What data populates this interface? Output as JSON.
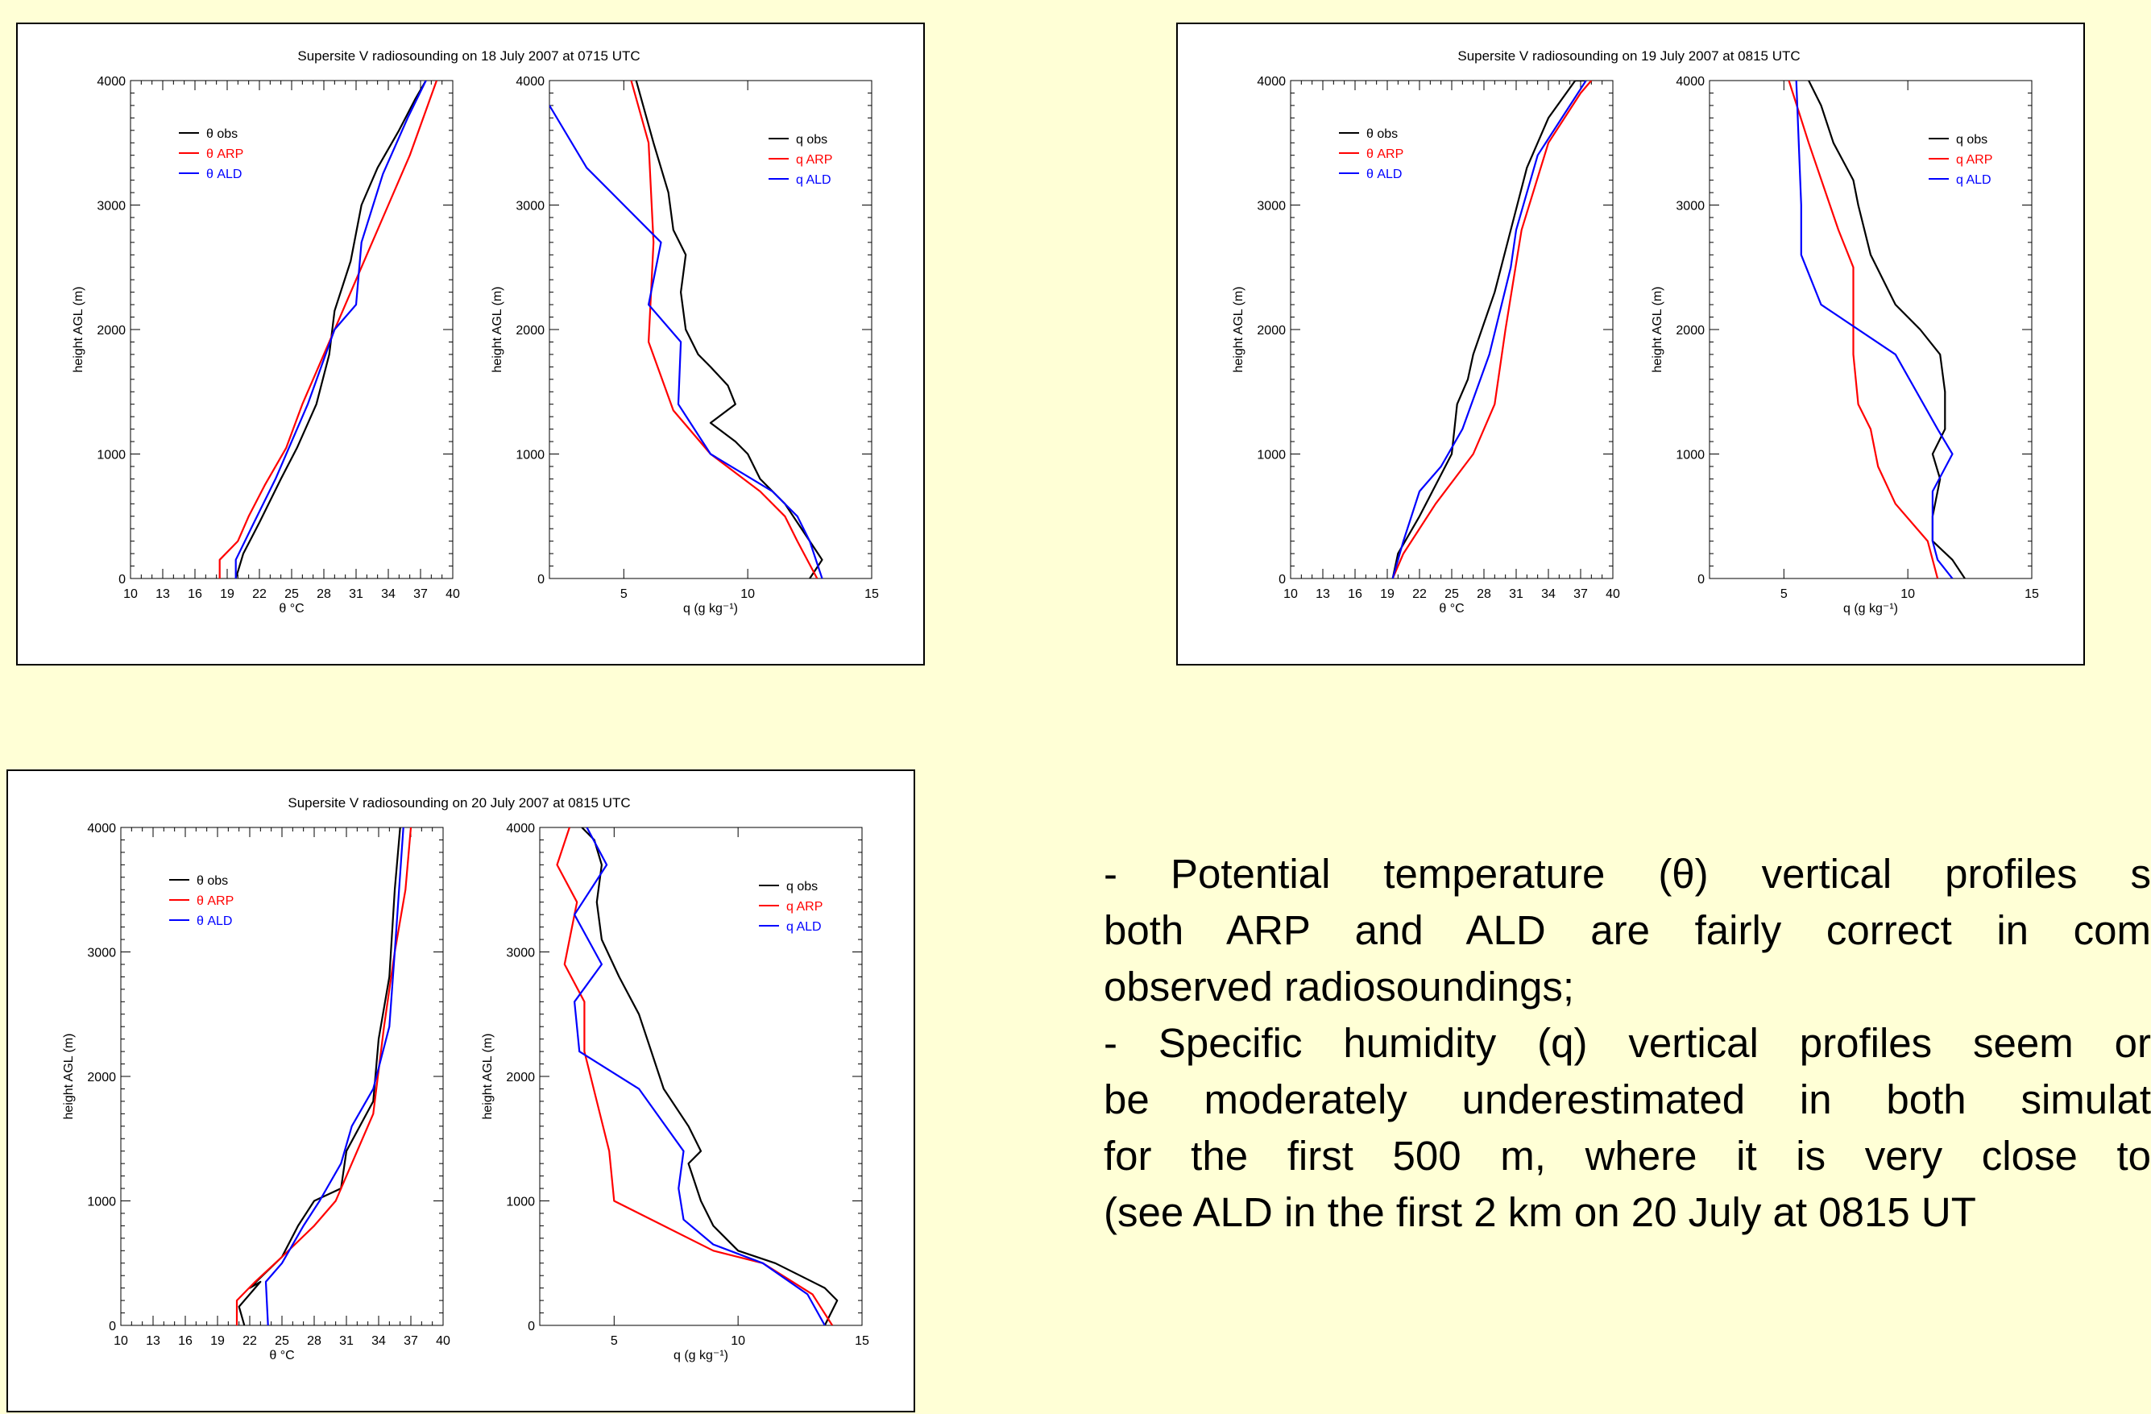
{
  "notes": {
    "lines": [
      "- Potential temperature (θ) vertical profiles s",
      "both ARP and ALD are fairly correct in com",
      "observed radiosoundings;",
      "- Specific humidity (q) vertical profiles seem or",
      "be moderately underestimated in both simulat",
      "for the first 500 m, where it is very close to",
      "(see ALD in the first 2 km on 20 July at 0815 UT"
    ]
  },
  "chart_data": [
    {
      "title": "Supersite V radiosounding on 18 July 2007 at 0715 UTC",
      "panels": [
        {
          "type": "line",
          "kind": "theta",
          "xlabel": "θ °C",
          "ylabel": "height AGL (m)",
          "xlim": [
            10,
            40
          ],
          "ylim": [
            0,
            4000
          ],
          "xticks": [
            10,
            13,
            16,
            19,
            22,
            25,
            28,
            31,
            34,
            37,
            40
          ],
          "yticks": [
            0,
            1000,
            2000,
            3000,
            4000
          ],
          "legend": [
            "θ obs",
            "θ ARP",
            "θ ALD"
          ],
          "series": [
            {
              "name": "θ obs",
              "color": "#000000",
              "x": [
                19.8,
                20.5,
                22,
                24,
                25.5,
                27.3,
                28.5,
                29,
                30.5,
                31.5,
                33,
                35,
                36.5,
                37.5
              ],
              "y": [
                0,
                200,
                450,
                800,
                1050,
                1400,
                1800,
                2150,
                2550,
                3000,
                3300,
                3600,
                3850,
                4000
              ]
            },
            {
              "name": "θ ARP",
              "color": "#ff0000",
              "x": [
                18.3,
                18.3,
                20,
                21,
                22.5,
                24.5,
                26,
                28,
                30,
                32,
                34,
                36,
                38.5
              ],
              "y": [
                0,
                150,
                300,
                500,
                750,
                1050,
                1400,
                1800,
                2200,
                2600,
                3000,
                3400,
                4000
              ]
            },
            {
              "name": "θ ALD",
              "color": "#0000ff",
              "x": [
                19.8,
                19.8,
                21.5,
                23.5,
                26.5,
                29,
                31,
                31.5,
                33.5,
                35.8,
                37.5
              ],
              "y": [
                0,
                150,
                450,
                800,
                1400,
                2000,
                2200,
                2700,
                3250,
                3700,
                4000
              ]
            }
          ]
        },
        {
          "type": "line",
          "kind": "q",
          "xlabel": "q (g kg⁻¹)",
          "ylabel": "height AGL (m)",
          "xlim": [
            2,
            15
          ],
          "ylim": [
            0,
            4000
          ],
          "xticks": [
            5,
            10,
            15
          ],
          "yticks": [
            0,
            1000,
            2000,
            3000,
            4000
          ],
          "legend": [
            "q obs",
            "q ARP",
            "q ALD"
          ],
          "series": [
            {
              "name": "q obs",
              "color": "#000000",
              "x": [
                12.5,
                13,
                12.5,
                11.5,
                10.5,
                10,
                9.5,
                8.5,
                9.5,
                9.2,
                8.5,
                8,
                7.5,
                7.3,
                7.5,
                7,
                6.8,
                6.2,
                5.5
              ],
              "y": [
                0,
                150,
                300,
                600,
                800,
                1000,
                1100,
                1250,
                1400,
                1550,
                1700,
                1800,
                2000,
                2300,
                2600,
                2800,
                3100,
                3500,
                4000
              ]
            },
            {
              "name": "q ARP",
              "color": "#ff0000",
              "x": [
                12.8,
                12,
                11.5,
                10.5,
                8.5,
                7,
                6,
                6.2,
                6,
                5.3
              ],
              "y": [
                0,
                300,
                500,
                700,
                1000,
                1350,
                1900,
                2700,
                3500,
                4000
              ]
            },
            {
              "name": "q ALD",
              "color": "#0000ff",
              "x": [
                13,
                12.5,
                12,
                11,
                8.5,
                7.2,
                7.3,
                6,
                6.5,
                3.5,
                2
              ],
              "y": [
                0,
                300,
                500,
                700,
                1000,
                1400,
                1900,
                2200,
                2700,
                3300,
                3800
              ]
            }
          ]
        }
      ]
    },
    {
      "title": "Supersite V radiosounding on 19 July 2007 at 0815 UTC",
      "panels": [
        {
          "type": "line",
          "kind": "theta",
          "xlabel": "θ °C",
          "ylabel": "height AGL (m)",
          "xlim": [
            10,
            40
          ],
          "ylim": [
            0,
            4000
          ],
          "xticks": [
            10,
            13,
            16,
            19,
            22,
            25,
            28,
            31,
            34,
            37,
            40
          ],
          "yticks": [
            0,
            1000,
            2000,
            3000,
            4000
          ],
          "legend": [
            "θ obs",
            "θ ARP",
            "θ ALD"
          ],
          "series": [
            {
              "name": "θ obs",
              "color": "#000000",
              "x": [
                19.5,
                20,
                22,
                25,
                25.5,
                26.5,
                27,
                29,
                30.5,
                32,
                34,
                36.5,
                37.5
              ],
              "y": [
                0,
                200,
                500,
                1000,
                1400,
                1600,
                1800,
                2300,
                2800,
                3300,
                3700,
                4000,
                4000
              ]
            },
            {
              "name": "θ ARP",
              "color": "#ff0000",
              "x": [
                19.5,
                20.5,
                23.5,
                27,
                29,
                30,
                31.5,
                34,
                37,
                38
              ],
              "y": [
                0,
                200,
                600,
                1000,
                1400,
                2000,
                2800,
                3500,
                3900,
                4000
              ]
            },
            {
              "name": "θ ALD",
              "color": "#0000ff",
              "x": [
                19.5,
                20.5,
                22,
                24,
                26,
                28.5,
                30.5,
                31,
                33,
                36,
                37.5
              ],
              "y": [
                0,
                300,
                700,
                900,
                1200,
                1800,
                2500,
                2800,
                3400,
                3800,
                4000
              ]
            }
          ]
        },
        {
          "type": "line",
          "kind": "q",
          "xlabel": "q (g kg⁻¹)",
          "ylabel": "height AGL (m)",
          "xlim": [
            2,
            15
          ],
          "ylim": [
            0,
            4000
          ],
          "xticks": [
            5,
            10,
            15
          ],
          "yticks": [
            0,
            1000,
            2000,
            3000,
            4000
          ],
          "legend": [
            "q obs",
            "q ARP",
            "q ALD"
          ],
          "series": [
            {
              "name": "q obs",
              "color": "#000000",
              "x": [
                12.3,
                11.8,
                11,
                11,
                11.3,
                11,
                11.5,
                11.5,
                11.3,
                10.5,
                9.5,
                8.5,
                8,
                7.8,
                7,
                6.5,
                6
              ],
              "y": [
                0,
                150,
                300,
                500,
                800,
                1000,
                1200,
                1500,
                1800,
                2000,
                2200,
                2600,
                3000,
                3200,
                3500,
                3800,
                4000
              ]
            },
            {
              "name": "q ARP",
              "color": "#ff0000",
              "x": [
                11.2,
                10.8,
                9.5,
                8.8,
                8.5,
                8,
                7.8,
                7.8,
                7.2,
                6,
                5.2
              ],
              "y": [
                0,
                300,
                600,
                900,
                1200,
                1400,
                1800,
                2500,
                2800,
                3500,
                4000
              ]
            },
            {
              "name": "q ALD",
              "color": "#0000ff",
              "x": [
                11.8,
                11.2,
                11,
                11,
                11.8,
                11.2,
                9.5,
                6.5,
                5.7,
                5.7,
                5.5
              ],
              "y": [
                0,
                150,
                300,
                700,
                1000,
                1200,
                1800,
                2200,
                2600,
                3000,
                4000
              ]
            }
          ]
        }
      ]
    },
    {
      "title": "Supersite V radiosounding on 20 July 2007 at 0815 UTC",
      "panels": [
        {
          "type": "line",
          "kind": "theta",
          "xlabel": "θ °C",
          "ylabel": "height AGL (m)",
          "xlim": [
            10,
            40
          ],
          "ylim": [
            0,
            4000
          ],
          "xticks": [
            10,
            13,
            16,
            19,
            22,
            25,
            28,
            31,
            34,
            37,
            40
          ],
          "yticks": [
            0,
            1000,
            2000,
            3000,
            4000
          ],
          "legend": [
            "θ obs",
            "θ ARP",
            "θ ALD"
          ],
          "series": [
            {
              "name": "θ obs",
              "color": "#000000",
              "x": [
                21.5,
                21,
                23,
                22,
                25,
                26.5,
                28,
                30.5,
                31,
                33.5,
                34,
                35,
                35.5,
                36
              ],
              "y": [
                0,
                150,
                350,
                300,
                550,
                800,
                1000,
                1100,
                1400,
                1800,
                2300,
                2800,
                3500,
                4000
              ]
            },
            {
              "name": "θ ARP",
              "color": "#ff0000",
              "x": [
                20.8,
                20.8,
                22.5,
                25,
                28,
                30,
                31.5,
                33.5,
                34.5,
                35.5,
                36.5,
                37
              ],
              "y": [
                0,
                200,
                350,
                550,
                800,
                1000,
                1300,
                1700,
                2400,
                3000,
                3500,
                4000
              ]
            },
            {
              "name": "θ ALD",
              "color": "#0000ff",
              "x": [
                23.7,
                23.5,
                25,
                27,
                28.5,
                30.5,
                31.5,
                33.5,
                35,
                35.5,
                36.3
              ],
              "y": [
                0,
                350,
                500,
                800,
                1000,
                1300,
                1600,
                1900,
                2400,
                3000,
                4000
              ]
            }
          ]
        },
        {
          "type": "line",
          "kind": "q",
          "xlabel": "q (g kg⁻¹)",
          "ylabel": "height AGL (m)",
          "xlim": [
            2,
            15
          ],
          "ylim": [
            0,
            4000
          ],
          "xticks": [
            5,
            10,
            15
          ],
          "yticks": [
            0,
            1000,
            2000,
            3000,
            4000
          ],
          "legend": [
            "q obs",
            "q ARP",
            "q ALD"
          ],
          "series": [
            {
              "name": "q obs",
              "color": "#000000",
              "x": [
                13.5,
                14,
                13.5,
                12.5,
                11.5,
                10,
                9,
                8.5,
                8,
                8.5,
                8,
                7,
                6.5,
                6,
                5.2,
                4.5,
                4.3,
                4.5,
                4.2,
                3.7
              ],
              "y": [
                0,
                200,
                300,
                400,
                500,
                600,
                800,
                1000,
                1300,
                1400,
                1600,
                1900,
                2200,
                2500,
                2800,
                3100,
                3400,
                3700,
                3900,
                4000
              ]
            },
            {
              "name": "q ARP",
              "color": "#ff0000",
              "x": [
                13.8,
                13,
                11,
                9,
                7,
                5,
                4.8,
                4.3,
                3.8,
                3.8,
                3,
                3.5,
                2.7,
                3.2
              ],
              "y": [
                0,
                250,
                500,
                600,
                800,
                1000,
                1400,
                1800,
                2200,
                2600,
                2900,
                3400,
                3700,
                4000
              ]
            },
            {
              "name": "q ALD",
              "color": "#0000ff",
              "x": [
                13.5,
                12.8,
                11,
                9,
                7.8,
                7.6,
                7.8,
                6,
                3.6,
                3.4,
                4.5,
                3.4,
                4.7,
                3.9
              ],
              "y": [
                0,
                250,
                500,
                650,
                850,
                1100,
                1400,
                1900,
                2200,
                2600,
                2900,
                3300,
                3700,
                4000
              ]
            }
          ]
        }
      ]
    }
  ]
}
